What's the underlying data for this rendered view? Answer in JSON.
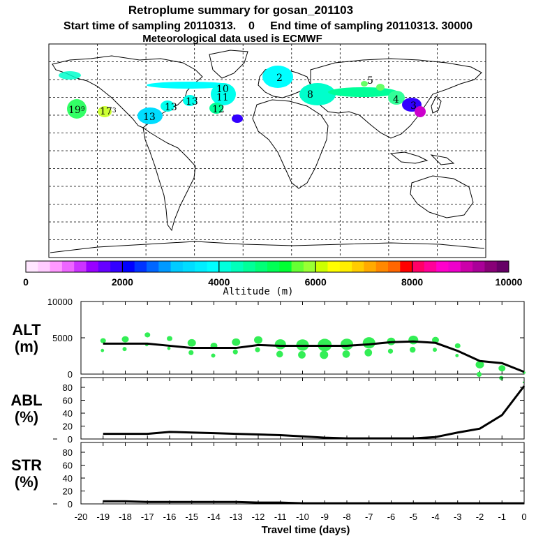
{
  "header": {
    "title": "Retroplume summary for gosan_201103",
    "line2": "Start time of sampling 20110313.    0     End time of sampling 20110313. 30000",
    "line3": "Meteorological data used is ECMWF"
  },
  "map_labels": [
    {
      "text": "19",
      "sub": "9",
      "color": "#33ff66"
    },
    {
      "text": "17",
      "sub": "3",
      "color": "#ccff33"
    },
    {
      "text": "13",
      "sub": "",
      "color": "#00ffee"
    },
    {
      "text": "13",
      "sub": "",
      "color": "#00ffee"
    },
    {
      "text": "13",
      "sub": "",
      "color": "#00ffee"
    },
    {
      "text": "12",
      "sub": "",
      "color": "#00ffee"
    },
    {
      "text": "11",
      "sub": "",
      "color": "#33ff99"
    },
    {
      "text": "10",
      "sub": "",
      "color": "#00ff99"
    },
    {
      "text": "2",
      "sub": "",
      "color": "#00ffff"
    },
    {
      "text": "8",
      "sub": "",
      "color": "#00ffcc"
    },
    {
      "text": "5",
      "sub": "",
      "color": "#66ff66"
    },
    {
      "text": "4",
      "sub": "",
      "color": "#33ff99"
    },
    {
      "text": "3",
      "sub": "",
      "color": "#3333ff"
    }
  ],
  "colorbar": {
    "colors": [
      "#ffe6ff",
      "#ffccff",
      "#ff99ff",
      "#ee66ff",
      "#cc33ff",
      "#9900ff",
      "#6600ff",
      "#3300ff",
      "#0000ff",
      "#0033ff",
      "#0066ff",
      "#0099ff",
      "#00ccff",
      "#00ddff",
      "#00eeff",
      "#00ffff",
      "#00ffdd",
      "#00ffbb",
      "#00ff99",
      "#00ff77",
      "#00ff55",
      "#00ff33",
      "#66ff33",
      "#99ff33",
      "#ccff00",
      "#ffff00",
      "#ffee00",
      "#ffcc00",
      "#ffaa00",
      "#ff8800",
      "#ff6600",
      "#ff0000",
      "#ff0066",
      "#ff0099",
      "#ff00cc",
      "#ee00cc",
      "#cc00aa",
      "#aa0099",
      "#880077",
      "#660066"
    ],
    "tick_labels": [
      "0",
      "2000",
      "4000",
      "6000",
      "8000",
      "10000"
    ],
    "label": "Altitude (m)"
  },
  "chart_data": [
    {
      "type": "scatter+line",
      "panel": "ALT",
      "ylabel": "ALT (m)",
      "ylim": [
        0,
        10000
      ],
      "yticks": [
        "0",
        "5000",
        "10000"
      ],
      "line": {
        "x": [
          -19,
          -18,
          -17,
          -16,
          -15,
          -14,
          -13,
          -12,
          -11,
          -10,
          -9,
          -8,
          -7,
          -6,
          -5,
          -4,
          -3,
          -2,
          -1,
          0
        ],
        "y": [
          4200,
          4200,
          4200,
          3900,
          3600,
          3600,
          3600,
          4000,
          3900,
          3900,
          3900,
          3900,
          4100,
          4400,
          4500,
          4300,
          3200,
          1800,
          1500,
          300
        ]
      },
      "points": {
        "x": [
          -19,
          -18,
          -17,
          -16,
          -15,
          -14,
          -13,
          -12,
          -11,
          -10,
          -9,
          -8,
          -7,
          -6,
          -5,
          -4,
          -3,
          -2,
          -1,
          0
        ],
        "y": [
          4600,
          4800,
          5400,
          4900,
          4300,
          3900,
          4400,
          4700,
          4100,
          4000,
          4000,
          4100,
          4300,
          4500,
          4700,
          4700,
          3900,
          1300,
          800,
          200
        ],
        "size": [
          4,
          5,
          4,
          4,
          6,
          5,
          6,
          6,
          8,
          9,
          10,
          9,
          9,
          6,
          7,
          5,
          4,
          6,
          5,
          2
        ]
      }
    },
    {
      "type": "line",
      "panel": "ABL",
      "ylabel": "ABL (%)",
      "ylim": [
        0,
        90
      ],
      "yticks": [
        "0",
        "20",
        "40",
        "60",
        "80"
      ],
      "x": [
        -19,
        -18,
        -17,
        -16,
        -15,
        -14,
        -13,
        -12,
        -11,
        -10,
        -9,
        -8,
        -7,
        -6,
        -5,
        -4,
        -3,
        -2,
        -1,
        0
      ],
      "y": [
        8,
        8,
        8,
        11,
        10,
        9,
        8,
        7,
        6,
        4,
        2,
        1,
        1,
        1,
        1,
        3,
        10,
        16,
        37,
        82
      ]
    },
    {
      "type": "line",
      "panel": "STR",
      "ylabel": "STR (%)",
      "ylim": [
        0,
        90
      ],
      "yticks": [
        "0",
        "20",
        "40",
        "60",
        "80"
      ],
      "x": [
        -19,
        -18,
        -17,
        -16,
        -15,
        -14,
        -13,
        -12,
        -11,
        -10,
        -9,
        -8,
        -7,
        -6,
        -5,
        -4,
        -3,
        -2,
        -1,
        0
      ],
      "y": [
        4,
        4,
        3,
        3,
        3,
        3,
        3,
        2,
        2,
        1,
        1,
        1,
        1,
        1,
        1,
        1,
        1,
        1,
        1,
        1
      ]
    }
  ],
  "xaxis": {
    "tick_labels": [
      "-20",
      "-19",
      "-18",
      "-17",
      "-16",
      "-15",
      "-14",
      "-13",
      "-12",
      "-11",
      "-10",
      "-9",
      "-8",
      "-7",
      "-6",
      "-5",
      "-4",
      "-3",
      "-2",
      "-1",
      "0"
    ],
    "label": "Travel time (days)"
  },
  "panel_labels": {
    "alt": [
      "ALT",
      "(m)"
    ],
    "abl": [
      "ABL",
      "(%)"
    ],
    "str": [
      "STR",
      "(%)"
    ]
  },
  "colors": {
    "line": "#000000",
    "points": "#33ee55"
  }
}
